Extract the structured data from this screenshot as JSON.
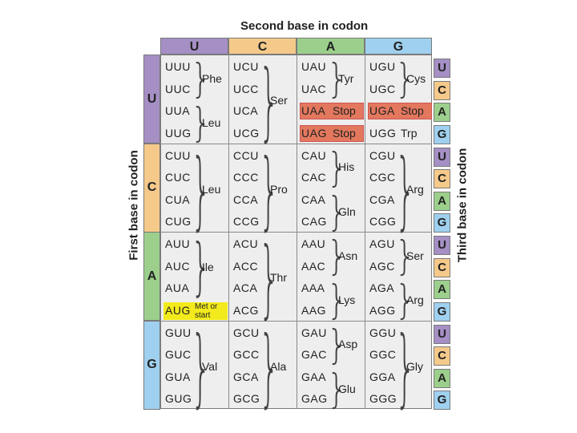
{
  "title": "Second base in codon",
  "first_label": "First base in codon",
  "third_label": "Third base in codon",
  "bases": [
    "U",
    "C",
    "A",
    "G"
  ],
  "colors": {
    "U": "#a58fc5",
    "C": "#f5c98a",
    "A": "#9ccf8c",
    "G": "#9fd0ef",
    "stop": "#e3785e",
    "start": "#f2ea1c"
  },
  "codons": [
    [
      "UUU",
      "UCU",
      "UAU",
      "UGU"
    ],
    [
      "UUC",
      "UCC",
      "UAC",
      "UGC"
    ],
    [
      "UUA",
      "UCA",
      "UAA",
      "UGA"
    ],
    [
      "UUG",
      "UCG",
      "UAG",
      "UGG"
    ],
    [
      "CUU",
      "CCU",
      "CAU",
      "CGU"
    ],
    [
      "CUC",
      "CCC",
      "CAC",
      "CGC"
    ],
    [
      "CUA",
      "CCA",
      "CAA",
      "CGA"
    ],
    [
      "CUG",
      "CCG",
      "CAG",
      "CGG"
    ],
    [
      "AUU",
      "ACU",
      "AAU",
      "AGU"
    ],
    [
      "AUC",
      "ACC",
      "AAC",
      "AGC"
    ],
    [
      "AUA",
      "ACA",
      "AAA",
      "AGA"
    ],
    [
      "AUG",
      "ACG",
      "AAG",
      "AGG"
    ],
    [
      "GUU",
      "GCU",
      "GAU",
      "GGU"
    ],
    [
      "GUC",
      "GCC",
      "GAC",
      "GGC"
    ],
    [
      "GUA",
      "GCA",
      "GAA",
      "GGA"
    ],
    [
      "GUG",
      "GCG",
      "GAG",
      "GGG"
    ]
  ],
  "inline": {
    "stop": "Stop",
    "trp": "Trp"
  },
  "start_label": [
    "Met or",
    "start"
  ],
  "groups": [
    {
      "col": 0,
      "r0": 0,
      "r1": 1,
      "label": "Phe"
    },
    {
      "col": 0,
      "r0": 2,
      "r1": 3,
      "label": "Leu"
    },
    {
      "col": 1,
      "r0": 0,
      "r1": 3,
      "label": "Ser"
    },
    {
      "col": 2,
      "r0": 0,
      "r1": 1,
      "label": "Tyr"
    },
    {
      "col": 3,
      "r0": 0,
      "r1": 1,
      "label": "Cys"
    },
    {
      "col": 0,
      "r0": 4,
      "r1": 7,
      "label": "Leu"
    },
    {
      "col": 1,
      "r0": 4,
      "r1": 7,
      "label": "Pro"
    },
    {
      "col": 2,
      "r0": 4,
      "r1": 5,
      "label": "His"
    },
    {
      "col": 2,
      "r0": 6,
      "r1": 7,
      "label": "Gln"
    },
    {
      "col": 3,
      "r0": 4,
      "r1": 7,
      "label": "Arg"
    },
    {
      "col": 0,
      "r0": 8,
      "r1": 10,
      "label": "Ile"
    },
    {
      "col": 1,
      "r0": 8,
      "r1": 11,
      "label": "Thr"
    },
    {
      "col": 2,
      "r0": 8,
      "r1": 9,
      "label": "Asn"
    },
    {
      "col": 2,
      "r0": 10,
      "r1": 11,
      "label": "Lys"
    },
    {
      "col": 3,
      "r0": 8,
      "r1": 9,
      "label": "Ser"
    },
    {
      "col": 3,
      "r0": 10,
      "r1": 11,
      "label": "Arg"
    },
    {
      "col": 0,
      "r0": 12,
      "r1": 15,
      "label": "Val"
    },
    {
      "col": 1,
      "r0": 12,
      "r1": 15,
      "label": "Ala"
    },
    {
      "col": 2,
      "r0": 12,
      "r1": 13,
      "label": "Asp"
    },
    {
      "col": 2,
      "r0": 14,
      "r1": 15,
      "label": "Glu"
    },
    {
      "col": 3,
      "r0": 12,
      "r1": 15,
      "label": "Gly"
    }
  ]
}
